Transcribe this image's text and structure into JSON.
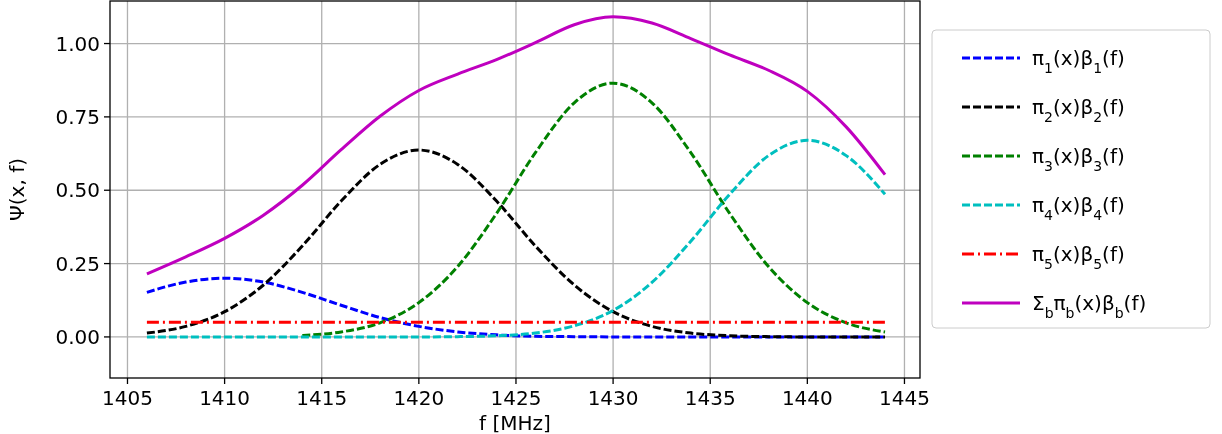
{
  "chart_data": {
    "type": "line",
    "xlabel": "f [MHz]",
    "ylabel": "Ψ(x, f)",
    "x": [
      1406,
      1408,
      1410,
      1412,
      1414,
      1416,
      1418,
      1420,
      1422,
      1424,
      1426,
      1428,
      1430,
      1432,
      1434,
      1436,
      1438,
      1440,
      1442,
      1444
    ],
    "xlim": [
      1404.1,
      1445.8
    ],
    "ylim": [
      -0.14,
      1.145
    ],
    "xticks": [
      1405,
      1410,
      1415,
      1420,
      1425,
      1430,
      1435,
      1440,
      1445
    ],
    "yticks": [
      {
        "value": 0,
        "label": "0.00"
      },
      {
        "value": 0.25,
        "label": "0.25"
      },
      {
        "value": 0.5,
        "label": "0.50"
      },
      {
        "value": 0.75,
        "label": "0.75"
      },
      {
        "value": 1,
        "label": "1.00"
      }
    ],
    "grid": true,
    "legend": "right",
    "marker": "none",
    "series": [
      {
        "name": "π$_{1}$(x)β$_{1}$(f)",
        "color": "#0000ff",
        "line_style": "dashed",
        "values": [
          0.152,
          0.187,
          0.2,
          0.187,
          0.152,
          0.108,
          0.066,
          0.036,
          0.017,
          0.007,
          0.002,
          0.001,
          0,
          0,
          0,
          0,
          0,
          0,
          0,
          0
        ]
      },
      {
        "name": "π$_{2}$(x)β$_{2}$(f)",
        "color": "#000000",
        "line_style": "dashed",
        "values": [
          0.013,
          0.036,
          0.086,
          0.177,
          0.31,
          0.463,
          0.588,
          0.637,
          0.588,
          0.463,
          0.31,
          0.177,
          0.086,
          0.036,
          0.013,
          0.004,
          0.001,
          0,
          0,
          0
        ]
      },
      {
        "name": "π$_{3}$(x)β$_{3}$(f)",
        "color": "#008000",
        "line_style": "dashed",
        "values": [
          null,
          null,
          null,
          null,
          0.005,
          0.017,
          0.048,
          0.117,
          0.24,
          0.421,
          0.628,
          0.798,
          0.865,
          0.798,
          0.628,
          0.421,
          0.24,
          0.117,
          0.048,
          0.017
        ]
      },
      {
        "name": "π$_{4}$(x)β$_{4}$(f)",
        "color": "#00bfbf",
        "line_style": "dashed",
        "values": [
          0,
          0,
          0,
          0,
          0,
          0,
          0,
          0,
          0.001,
          0.004,
          0.013,
          0.038,
          0.09,
          0.186,
          0.326,
          0.486,
          0.618,
          0.67,
          0.618,
          0.486
        ]
      },
      {
        "name": "π$_{5}$(x)β$_{5}$(f)",
        "color": "#ff0000",
        "line_style": "dashdot",
        "values": [
          0.05,
          0.05,
          0.05,
          0.05,
          0.05,
          0.05,
          0.05,
          0.05,
          0.05,
          0.05,
          0.05,
          0.05,
          0.05,
          0.05,
          0.05,
          0.05,
          0.05,
          0.05,
          0.05,
          0.05
        ]
      },
      {
        "name": "Σ$_{b}$π$_{b}$(x)β$_{b}$(f)",
        "color": "#bf00bf",
        "line_style": "solid",
        "values": [
          0.215,
          0.273,
          0.336,
          0.415,
          0.517,
          0.638,
          0.752,
          0.84,
          0.896,
          0.945,
          1.003,
          1.064,
          1.091,
          1.07,
          1.017,
          0.961,
          0.909,
          0.837,
          0.716,
          0.553
        ]
      }
    ]
  }
}
